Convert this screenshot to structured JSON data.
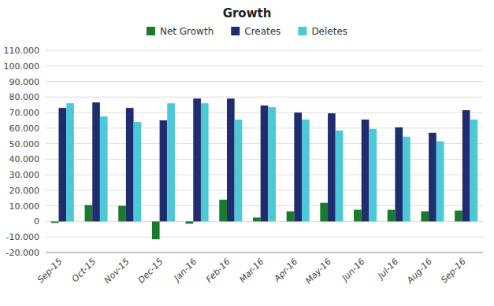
{
  "chart_data": {
    "type": "bar",
    "title": "Growth",
    "categories": [
      "Sep-15",
      "Oct-15",
      "Nov-15",
      "Dec-15",
      "Jan-16",
      "Feb-16",
      "Mar-16",
      "Apr-16",
      "May-16",
      "Jun-16",
      "Jul-16",
      "Aug-16",
      "Sep-16"
    ],
    "series": [
      {
        "name": "Net Growth",
        "color": "#1a7a2e",
        "values": [
          -1000,
          10500,
          10000,
          -11500,
          -1500,
          14000,
          2500,
          6500,
          12000,
          7500,
          7500,
          6500,
          7000
        ]
      },
      {
        "name": "Creates",
        "color": "#1f2d6e",
        "values": [
          73000,
          76500,
          73000,
          65000,
          79000,
          79000,
          74500,
          70000,
          69500,
          65500,
          60500,
          57000,
          71500
        ]
      },
      {
        "name": "Deletes",
        "color": "#4dc8d8",
        "values": [
          76000,
          67500,
          64000,
          76000,
          76000,
          65500,
          73500,
          65500,
          58500,
          59500,
          54500,
          51500,
          65500
        ]
      }
    ],
    "ylim": [
      -20000,
      110000
    ],
    "yticks": [
      {
        "value": -20000,
        "label": "-20.000"
      },
      {
        "value": -10000,
        "label": "-10.000"
      },
      0,
      {
        "value": 10000,
        "label": "10.000"
      },
      {
        "value": 20000,
        "label": "20.000"
      },
      {
        "value": 30000,
        "label": "30.000"
      },
      {
        "value": 40000,
        "label": "40.000"
      },
      {
        "value": 50000,
        "label": "50.000"
      },
      {
        "value": 60000,
        "label": "60.000"
      },
      {
        "value": 70000,
        "label": "70.000"
      },
      {
        "value": 80000,
        "label": "80.000"
      },
      {
        "value": 90000,
        "label": "90.000"
      },
      {
        "value": 100000,
        "label": "100.000"
      },
      {
        "value": 110000,
        "label": "110.000"
      }
    ],
    "grid": true,
    "legend": "top"
  }
}
